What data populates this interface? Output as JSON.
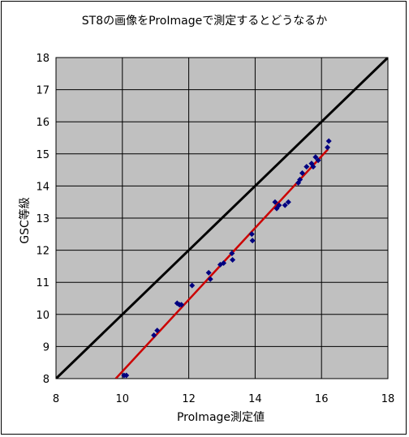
{
  "chart_data": {
    "type": "scatter",
    "title": "ST8の画像をProImageで測定するとどうなるか",
    "xlabel": "ProImage測定値",
    "ylabel": "GSC等級",
    "xlim": [
      8,
      18
    ],
    "ylim": [
      8,
      18
    ],
    "xticks": [
      "8",
      "10",
      "12",
      "14",
      "16",
      "18"
    ],
    "yticks": [
      "8",
      "9",
      "10",
      "11",
      "12",
      "13",
      "14",
      "15",
      "16",
      "17",
      "18"
    ],
    "grid": true,
    "plot_background": "#c0c0c0",
    "points": [
      [
        10.05,
        8.1
      ],
      [
        10.12,
        8.1
      ],
      [
        10.95,
        9.35
      ],
      [
        11.05,
        9.5
      ],
      [
        11.65,
        10.35
      ],
      [
        11.72,
        10.3
      ],
      [
        11.78,
        10.3
      ],
      [
        12.1,
        10.9
      ],
      [
        12.6,
        11.3
      ],
      [
        12.65,
        11.1
      ],
      [
        12.95,
        11.55
      ],
      [
        13.05,
        11.6
      ],
      [
        13.3,
        11.9
      ],
      [
        13.32,
        11.7
      ],
      [
        13.9,
        12.5
      ],
      [
        13.92,
        12.3
      ],
      [
        14.6,
        13.5
      ],
      [
        14.65,
        13.3
      ],
      [
        14.72,
        13.4
      ],
      [
        14.9,
        13.4
      ],
      [
        15.0,
        13.5
      ],
      [
        15.3,
        14.1
      ],
      [
        15.35,
        14.2
      ],
      [
        15.42,
        14.4
      ],
      [
        15.55,
        14.6
      ],
      [
        15.7,
        14.7
      ],
      [
        15.75,
        14.6
      ],
      [
        15.82,
        14.9
      ],
      [
        15.9,
        14.8
      ],
      [
        16.18,
        15.2
      ],
      [
        16.22,
        15.4
      ]
    ],
    "fit_line": {
      "x": [
        9.8,
        16.2
      ],
      "y": [
        8.0,
        15.15
      ]
    },
    "reference_line": {
      "x": [
        8,
        18
      ],
      "y": [
        8,
        18
      ]
    },
    "colors": {
      "points": "#000080",
      "fit_line": "#cc0000",
      "reference_line": "#000000",
      "grid": "#000000"
    }
  }
}
